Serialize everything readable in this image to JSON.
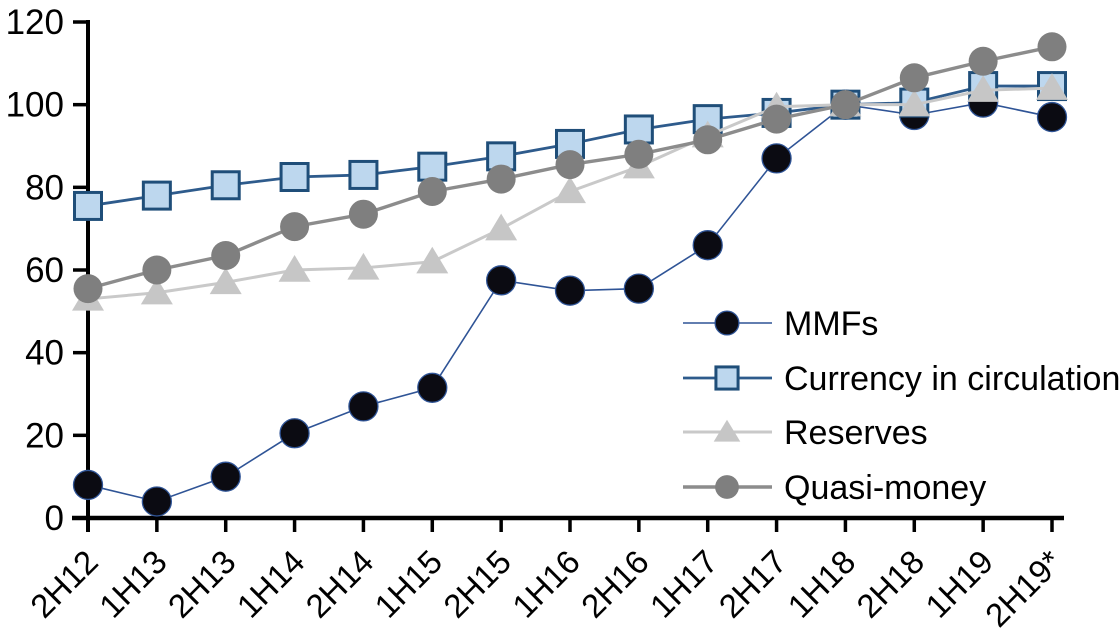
{
  "chart_data": {
    "type": "line",
    "title": "",
    "xlabel": "",
    "ylabel": "",
    "categories": [
      "2H12",
      "1H13",
      "2H13",
      "1H14",
      "2H14",
      "1H15",
      "2H15",
      "1H16",
      "2H16",
      "1H17",
      "2H17",
      "1H18",
      "2H18",
      "1H19",
      "2H19*"
    ],
    "series": [
      {
        "name": "MMFs",
        "marker": "circle",
        "values": [
          8,
          4,
          10,
          20.5,
          27,
          31.5,
          57.5,
          55,
          55.5,
          66,
          87,
          100,
          97.5,
          100.5,
          97
        ],
        "line_color": "#2f5496",
        "line_width": 1.6,
        "marker_fill": "#0b0b12",
        "marker_stroke": "#2f5496",
        "marker_stroke_width": 1.3,
        "marker_size": 14.5
      },
      {
        "name": "Currency in circulation",
        "marker": "square",
        "values": [
          75.5,
          78,
          80.5,
          82.5,
          83,
          85,
          87.5,
          90.5,
          94,
          96.5,
          98,
          100,
          100.5,
          104.5,
          104.5
        ],
        "line_color": "#2e5b8c",
        "line_width": 2.8,
        "marker_fill": "#bdd7ee",
        "marker_stroke": "#1f4e79",
        "marker_stroke_width": 3,
        "marker_size": 13.5
      },
      {
        "name": "Reserves",
        "marker": "triangle",
        "values": [
          53,
          54.5,
          57,
          60,
          60.5,
          62,
          70,
          79,
          85,
          92.5,
          99.5,
          100,
          100,
          103.5,
          104
        ],
        "line_color": "#c9c9c9",
        "line_width": 3,
        "marker_fill": "#c6c6c6",
        "marker_stroke": "none",
        "marker_stroke_width": 0,
        "marker_size": 15
      },
      {
        "name": "Quasi-money",
        "marker": "circle",
        "values": [
          55.5,
          60,
          63.5,
          70.5,
          73.5,
          79,
          82,
          85.5,
          88,
          91.5,
          96.5,
          100,
          106.5,
          110.5,
          114
        ],
        "line_color": "#8c8c8c",
        "line_width": 3.4,
        "marker_fill": "#7f7f7f",
        "marker_stroke": "none",
        "marker_stroke_width": 0,
        "marker_size": 14.5
      }
    ],
    "ylim": [
      0,
      120
    ],
    "yticks": [
      0,
      20,
      40,
      60,
      80,
      100,
      120
    ],
    "ytick_labels": [
      "0",
      "20",
      "40",
      "60",
      "80",
      "100",
      "120"
    ],
    "grid": false,
    "x_tick_label_rotation": 45,
    "legend_position": "inside-right",
    "legend_labels": [
      "MMFs",
      "Currency in circulation",
      "Reserves",
      "Quasi-money"
    ],
    "axis_color": "#000000",
    "background_color": "#ffffff"
  }
}
